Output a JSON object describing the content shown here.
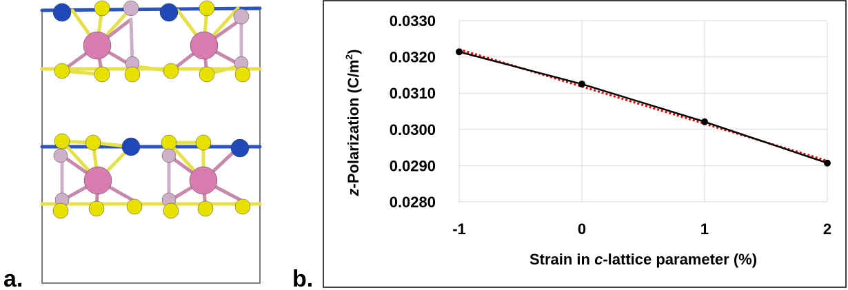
{
  "panels": {
    "a_label": "a.",
    "b_label": "b."
  },
  "structure": {
    "colors": {
      "frame": "#7a7a7a",
      "bond_yellow": "#e6e04a",
      "bond_pink": "#c58aac",
      "atom_yellow": "#e8e000",
      "atom_pink": "#d97ab0",
      "atom_lightpink": "#cdb0c8",
      "atom_blue": "#1f48b8"
    }
  },
  "chart_data": {
    "type": "line",
    "title": "",
    "xlabel_parts": [
      "Strain in ",
      "c",
      "-lattice parameter (%)"
    ],
    "ylabel_parts": [
      "z",
      "-Polarization (C/m",
      "2",
      ")"
    ],
    "xlim": [
      -1,
      2
    ],
    "ylim": [
      0.028,
      0.033
    ],
    "x_ticks": [
      "-1",
      "0",
      "1",
      "2"
    ],
    "y_ticks": [
      "0.0280",
      "0.0290",
      "0.0300",
      "0.0310",
      "0.0320",
      "0.0330"
    ],
    "grid": true,
    "series": [
      {
        "style": "solid-with-markers",
        "color": "#000000",
        "x": [
          -1,
          0,
          1,
          2
        ],
        "y": [
          0.03214,
          0.03125,
          0.03021,
          0.02907
        ]
      },
      {
        "style": "dotted-linear-fit",
        "color": "#e00000",
        "x": [
          -1,
          2
        ],
        "y": [
          0.03221,
          0.02913
        ]
      }
    ]
  }
}
